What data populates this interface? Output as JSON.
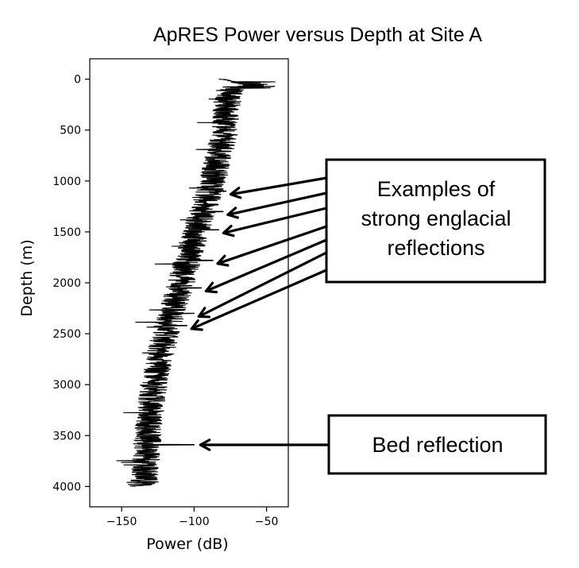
{
  "chart_data": {
    "type": "line",
    "title": "ApRES Power versus Depth at Site A",
    "xlabel": "Power (dB)",
    "ylabel": "Depth (m)",
    "xlim": [
      -172,
      -35
    ],
    "ylim": [
      4200,
      -200
    ],
    "y_inverted": true,
    "grid": false,
    "x_ticks": [
      -150,
      -100,
      -50
    ],
    "x_tick_labels": [
      "−150",
      "−100",
      "−50"
    ],
    "y_ticks": [
      0,
      500,
      1000,
      1500,
      2000,
      2500,
      3000,
      3500,
      4000
    ],
    "y_tick_labels": [
      "0",
      "500",
      "1000",
      "1500",
      "2000",
      "2500",
      "3000",
      "3500",
      "4000"
    ],
    "series": [
      {
        "color": "#000000",
        "trend_depth": [
          0,
          200,
          500,
          1000,
          1500,
          2000,
          2500,
          3000,
          3500,
          4000
        ],
        "trend_power": [
          -68,
          -75,
          -77,
          -85,
          -97,
          -107,
          -118,
          -126,
          -130,
          -133
        ]
      }
    ],
    "spikes": [
      {
        "depth": 1100,
        "power": -78
      },
      {
        "depth": 1300,
        "power": -80
      },
      {
        "depth": 1480,
        "power": -83
      },
      {
        "depth": 1780,
        "power": -87
      },
      {
        "depth": 2050,
        "power": -95
      },
      {
        "depth": 2300,
        "power": -100
      },
      {
        "depth": 2420,
        "power": -105
      },
      {
        "depth": 3590,
        "power": -100
      }
    ],
    "annotations": [
      {
        "label": "Examples of strong englacial reflections",
        "lines": [
          "Examples of",
          "strong englacial",
          "reflections"
        ]
      },
      {
        "label": "Bed reflection",
        "lines": [
          "Bed reflection"
        ]
      }
    ]
  }
}
